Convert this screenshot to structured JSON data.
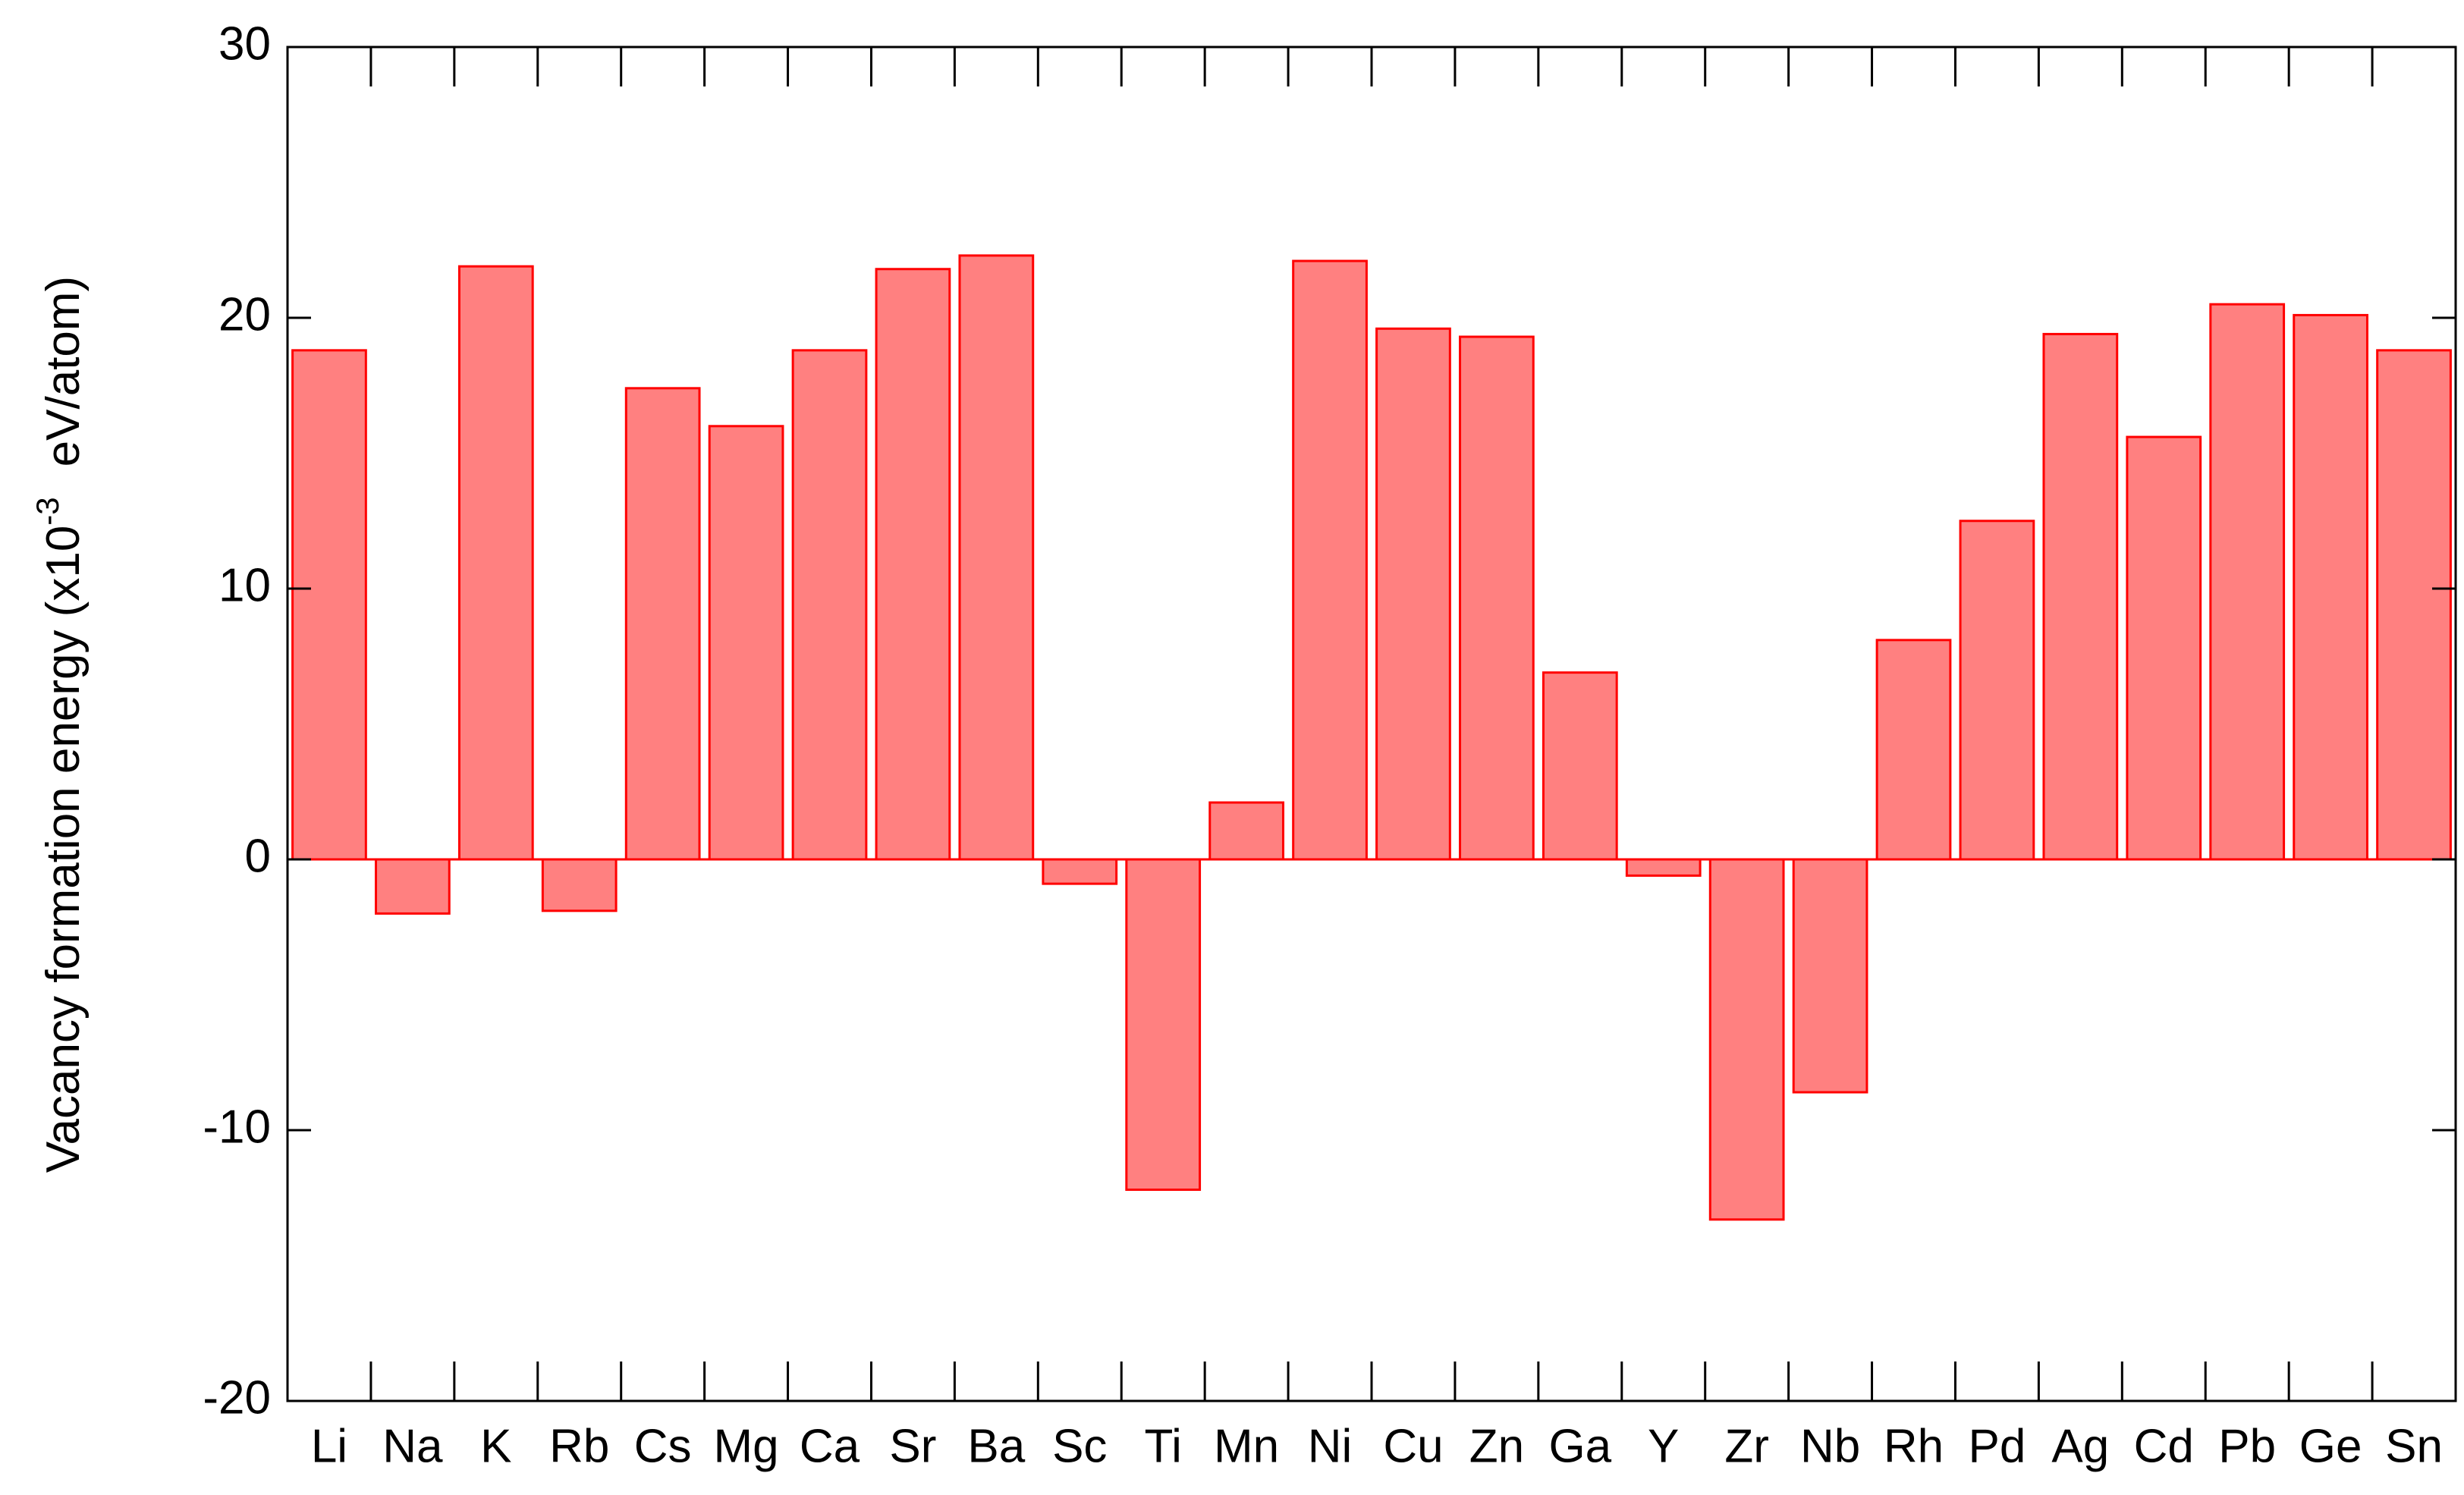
{
  "chart_data": {
    "type": "bar",
    "ylabel": {
      "text": "Vacancy formation energy (x10",
      "sup": "-3",
      "unit": "eV/atom)"
    },
    "categories": [
      "Li",
      "Na",
      "K",
      "Rb",
      "Cs",
      "Mg",
      "Ca",
      "Sr",
      "Ba",
      "Sc",
      "Ti",
      "Mn",
      "Ni",
      "Cu",
      "Zn",
      "Ga",
      "Y",
      "Zr",
      "Nb",
      "Rh",
      "Pd",
      "Ag",
      "Cd",
      "Pb",
      "Ge",
      "Sn"
    ],
    "values": [
      18.8,
      -2.0,
      21.9,
      -1.9,
      17.4,
      16.0,
      18.8,
      21.8,
      22.3,
      -0.9,
      -12.2,
      2.1,
      22.1,
      19.6,
      19.3,
      6.9,
      -0.6,
      -13.3,
      -8.6,
      8.1,
      12.5,
      19.4,
      15.6,
      20.5,
      20.1,
      18.8
    ],
    "color": "#ff8080",
    "edgecolor": "#ff0000",
    "ylim": [
      -20,
      30
    ],
    "yticks": [
      -20,
      -10,
      0,
      10,
      20,
      30
    ],
    "grid": false
  }
}
